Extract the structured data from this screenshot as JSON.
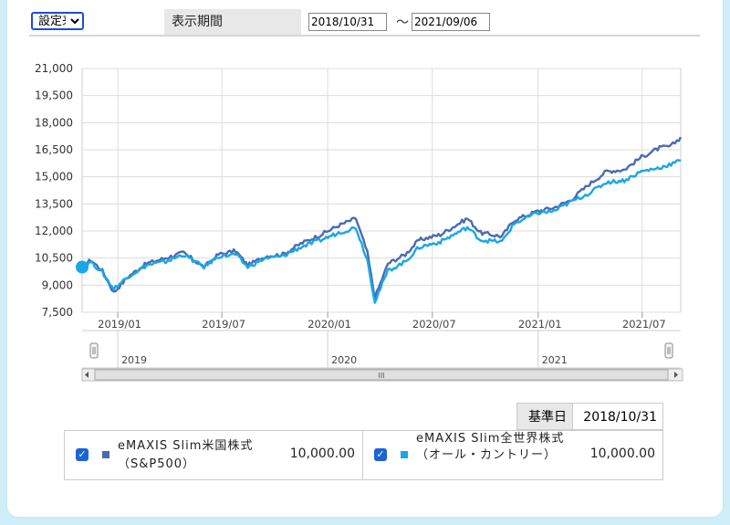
{
  "controls": {
    "period_select": "設定来",
    "period_label": "表示期間",
    "date_from": "2018/10/31",
    "tilde": "～",
    "date_to": "2021/09/06"
  },
  "chart_data": {
    "type": "line",
    "title": "",
    "xlabel": "",
    "ylabel": "",
    "ylim": [
      7500,
      21000
    ],
    "xlim": [
      "2018-10-31",
      "2021-09-06"
    ],
    "yticks": [
      "21,000",
      "19,500",
      "18,000",
      "16,500",
      "15,000",
      "13,500",
      "12,000",
      "10,500",
      "9,000",
      "7,500"
    ],
    "ytick_values": [
      21000,
      19500,
      18000,
      16500,
      15000,
      13500,
      12000,
      10500,
      9000,
      7500
    ],
    "xticks": [
      "2019/01",
      "2019/07",
      "2020/01",
      "2020/07",
      "2021/01",
      "2021/07"
    ],
    "xtick_dates": [
      "2019-01-01",
      "2019-07-01",
      "2020-01-01",
      "2020-07-01",
      "2021-01-01",
      "2021-07-01"
    ],
    "navigator_labels": [
      "2019",
      "2020",
      "2021"
    ],
    "navigator_dates": [
      "2019-01-01",
      "2020-01-01",
      "2021-01-01"
    ],
    "grid": true,
    "colors": {
      "sp500": "#4a6bb0",
      "allcountry": "#19a7e6"
    },
    "series": [
      {
        "name": "eMAXIS Slim米国株式（S&P500）",
        "color": "#4a6bb0",
        "points": [
          [
            "2018-10-31",
            10000
          ],
          [
            "2018-11-15",
            10400
          ],
          [
            "2018-12-05",
            9800
          ],
          [
            "2018-12-25",
            8600
          ],
          [
            "2019-01-20",
            9500
          ],
          [
            "2019-02-20",
            10200
          ],
          [
            "2019-03-25",
            10500
          ],
          [
            "2019-04-25",
            10800
          ],
          [
            "2019-05-31",
            10000
          ],
          [
            "2019-06-25",
            10700
          ],
          [
            "2019-07-25",
            10900
          ],
          [
            "2019-08-15",
            10100
          ],
          [
            "2019-09-15",
            10600
          ],
          [
            "2019-10-15",
            10700
          ],
          [
            "2019-11-15",
            11300
          ],
          [
            "2019-12-20",
            11800
          ],
          [
            "2020-01-20",
            12300
          ],
          [
            "2020-02-19",
            12700
          ],
          [
            "2020-03-10",
            10800
          ],
          [
            "2020-03-23",
            8300
          ],
          [
            "2020-04-15",
            10200
          ],
          [
            "2020-05-15",
            10700
          ],
          [
            "2020-06-08",
            11500
          ],
          [
            "2020-07-15",
            11800
          ],
          [
            "2020-08-31",
            12700
          ],
          [
            "2020-09-23",
            11900
          ],
          [
            "2020-10-30",
            11700
          ],
          [
            "2020-11-20",
            12600
          ],
          [
            "2020-12-31",
            13100
          ],
          [
            "2021-01-29",
            13300
          ],
          [
            "2021-02-26",
            13700
          ],
          [
            "2021-03-31",
            14600
          ],
          [
            "2021-04-30",
            15300
          ],
          [
            "2021-05-31",
            15400
          ],
          [
            "2021-06-30",
            16100
          ],
          [
            "2021-07-31",
            16600
          ],
          [
            "2021-08-20",
            16700
          ],
          [
            "2021-09-06",
            17200
          ]
        ]
      },
      {
        "name": "eMAXIS Slim全世界株式（オール・カントリー）",
        "color": "#19a7e6",
        "points": [
          [
            "2018-10-31",
            10000
          ],
          [
            "2018-11-15",
            10300
          ],
          [
            "2018-12-05",
            9700
          ],
          [
            "2018-12-25",
            8800
          ],
          [
            "2019-01-20",
            9500
          ],
          [
            "2019-02-20",
            10100
          ],
          [
            "2019-03-25",
            10300
          ],
          [
            "2019-04-25",
            10700
          ],
          [
            "2019-05-31",
            10000
          ],
          [
            "2019-06-25",
            10600
          ],
          [
            "2019-07-25",
            10700
          ],
          [
            "2019-08-15",
            10000
          ],
          [
            "2019-09-15",
            10500
          ],
          [
            "2019-10-15",
            10600
          ],
          [
            "2019-11-15",
            11100
          ],
          [
            "2019-12-20",
            11500
          ],
          [
            "2020-01-20",
            11900
          ],
          [
            "2020-02-19",
            12200
          ],
          [
            "2020-03-10",
            10400
          ],
          [
            "2020-03-23",
            8100
          ],
          [
            "2020-04-15",
            9800
          ],
          [
            "2020-05-15",
            10300
          ],
          [
            "2020-06-08",
            11100
          ],
          [
            "2020-07-15",
            11400
          ],
          [
            "2020-08-31",
            12200
          ],
          [
            "2020-09-23",
            11500
          ],
          [
            "2020-10-30",
            11400
          ],
          [
            "2020-11-20",
            12400
          ],
          [
            "2020-12-31",
            13000
          ],
          [
            "2021-01-29",
            13100
          ],
          [
            "2021-02-26",
            13600
          ],
          [
            "2021-03-31",
            14100
          ],
          [
            "2021-04-30",
            14700
          ],
          [
            "2021-05-31",
            14800
          ],
          [
            "2021-06-30",
            15300
          ],
          [
            "2021-07-31",
            15500
          ],
          [
            "2021-08-20",
            15700
          ],
          [
            "2021-09-06",
            15900
          ]
        ]
      }
    ]
  },
  "legend": {
    "base_label": "基準日",
    "base_date": "2018/10/31",
    "items": [
      {
        "name": "eMAXIS Slim米国株式（S&P500）",
        "value": "10,000.00",
        "color": "#4a6bb0",
        "checked": true
      },
      {
        "name": "eMAXIS Slim全世界株式（オール・カントリー）",
        "value": "10,000.00",
        "color": "#19a7e6",
        "checked": true
      }
    ]
  },
  "navigator": {
    "scroll_thumb_label": "III"
  }
}
